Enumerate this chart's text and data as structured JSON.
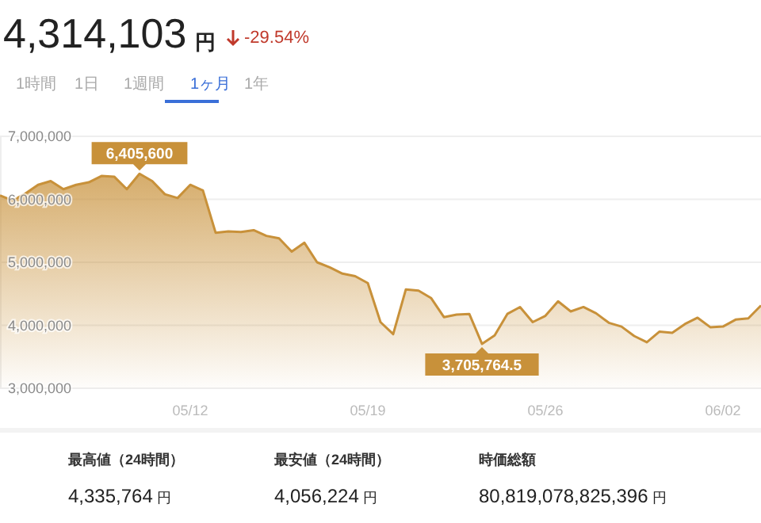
{
  "chart_data": {
    "type": "area",
    "title": "4,314,103",
    "subtitle": "-29.54%",
    "categories": [
      null,
      null,
      null,
      null,
      null,
      null,
      null,
      null,
      null,
      null,
      null,
      null,
      null,
      null,
      null,
      "05/12",
      null,
      null,
      null,
      null,
      null,
      null,
      null,
      null,
      null,
      null,
      null,
      null,
      null,
      "05/19",
      null,
      null,
      null,
      null,
      null,
      null,
      null,
      null,
      null,
      null,
      null,
      null,
      null,
      "05/26",
      null,
      null,
      null,
      null,
      null,
      null,
      null,
      null,
      null,
      null,
      null,
      null,
      null,
      "06/02",
      null,
      null,
      null
    ],
    "series": [
      {
        "color": "#c8913a",
        "values": [
          6060000,
          5980000,
          6090000,
          6230000,
          6290000,
          6160000,
          6230000,
          6270000,
          6370000,
          6360000,
          6160000,
          6405600,
          6290000,
          6080000,
          6020000,
          6230000,
          6140000,
          5470000,
          5490000,
          5480000,
          5510000,
          5420000,
          5380000,
          5170000,
          5310000,
          5000000,
          4920000,
          4820000,
          4780000,
          4670000,
          4050000,
          3860000,
          4570000,
          4550000,
          4430000,
          4130000,
          4170000,
          4180000,
          3705764.5,
          3840000,
          4180000,
          4290000,
          4050000,
          4150000,
          4380000,
          4220000,
          4290000,
          4190000,
          4040000,
          3980000,
          3830000,
          3730000,
          3900000,
          3880000,
          4020000,
          4120000,
          3970000,
          3980000,
          4090000,
          4110000,
          4314103
        ]
      }
    ],
    "ylim": [
      3000000,
      7000000
    ],
    "yticks": [
      {
        "value": 3000000,
        "label": "3,000,000"
      },
      {
        "value": 4000000,
        "label": "4,000,000"
      },
      {
        "value": 5000000,
        "label": "5,000,000"
      },
      {
        "value": 6000000,
        "label": "6,000,000"
      },
      {
        "value": 7000000,
        "label": "7,000,000"
      }
    ],
    "grid": "y",
    "annotations": [
      {
        "text": "6,405,600",
        "y": 6405600
      },
      {
        "text": "3,705,764.5",
        "y": 3705764.5
      },
      "円",
      "1時間",
      "1日",
      "1週間",
      "1ヶ月",
      "1年",
      "最高値（24時間）",
      "4,335,764 円",
      "最安値（24時間）",
      "4,056,224 円",
      "時価総額",
      "80,819,078,825,396 円"
    ]
  }
}
